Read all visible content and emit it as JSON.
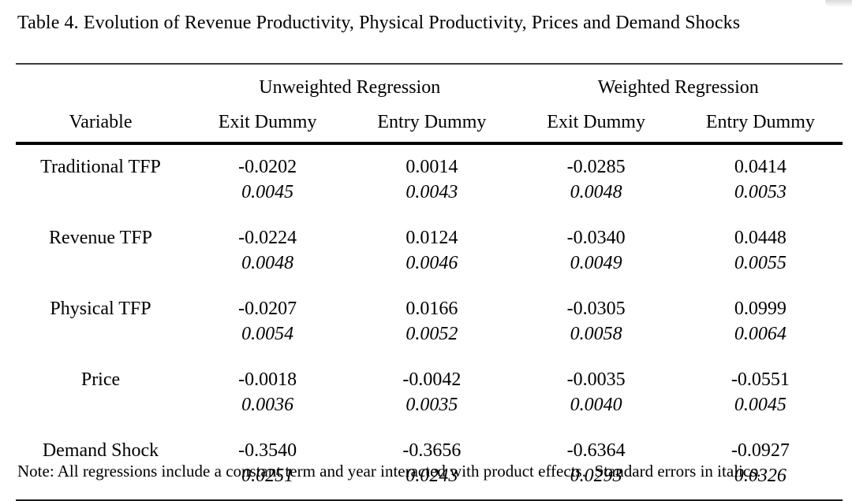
{
  "title": "Table 4. Evolution of Revenue Productivity, Physical Productivity, Prices and Demand Shocks",
  "table": {
    "group_headers": [
      {
        "label": "Unweighted Regression"
      },
      {
        "label": "Weighted Regression"
      }
    ],
    "column_headers": [
      "Variable",
      "Exit Dummy",
      "Entry Dummy",
      "Exit Dummy",
      "Entry Dummy"
    ],
    "rows": [
      {
        "variable": "Traditional TFP",
        "coefficients": [
          "-0.0202",
          "0.0014",
          "-0.0285",
          "0.0414"
        ],
        "std_errors": [
          "0.0045",
          "0.0043",
          "0.0048",
          "0.0053"
        ]
      },
      {
        "variable": "Revenue TFP",
        "coefficients": [
          "-0.0224",
          "0.0124",
          "-0.0340",
          "0.0448"
        ],
        "std_errors": [
          "0.0048",
          "0.0046",
          "0.0049",
          "0.0055"
        ]
      },
      {
        "variable": "Physical TFP",
        "coefficients": [
          "-0.0207",
          "0.0166",
          "-0.0305",
          "0.0999"
        ],
        "std_errors": [
          "0.0054",
          "0.0052",
          "0.0058",
          "0.0064"
        ]
      },
      {
        "variable": "Price",
        "coefficients": [
          "-0.0018",
          "-0.0042",
          "-0.0035",
          "-0.0551"
        ],
        "std_errors": [
          "0.0036",
          "0.0035",
          "0.0040",
          "0.0045"
        ]
      },
      {
        "variable": "Demand Shock",
        "coefficients": [
          "-0.3540",
          "-0.3656",
          "-0.6364",
          "-0.0927"
        ],
        "std_errors": [
          "0.0251",
          "0.0243",
          "0.0293",
          "0.0326"
        ]
      }
    ]
  },
  "note": "Note: All regressions include a constant term and year interacted with product effects.  Standard errors in italics.",
  "colors": {
    "text": "#000000",
    "rule_thin": "#3d3d3d",
    "rule_thick": "#000000",
    "background": "#ffffff"
  }
}
